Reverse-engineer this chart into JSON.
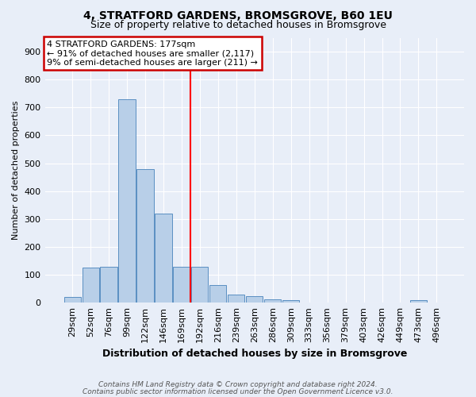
{
  "title": "4, STRATFORD GARDENS, BROMSGROVE, B60 1EU",
  "subtitle": "Size of property relative to detached houses in Bromsgrove",
  "xlabel": "Distribution of detached houses by size in Bromsgrove",
  "ylabel": "Number of detached properties",
  "footnote1": "Contains HM Land Registry data © Crown copyright and database right 2024.",
  "footnote2": "Contains public sector information licensed under the Open Government Licence v3.0.",
  "bar_labels": [
    "29sqm",
    "52sqm",
    "76sqm",
    "99sqm",
    "122sqm",
    "146sqm",
    "169sqm",
    "192sqm",
    "216sqm",
    "239sqm",
    "263sqm",
    "286sqm",
    "309sqm",
    "333sqm",
    "356sqm",
    "379sqm",
    "403sqm",
    "426sqm",
    "449sqm",
    "473sqm",
    "496sqm"
  ],
  "bar_values": [
    20,
    125,
    130,
    730,
    480,
    320,
    130,
    130,
    63,
    28,
    22,
    12,
    8,
    0,
    0,
    0,
    0,
    0,
    0,
    8,
    0
  ],
  "bar_color": "#b8cfe8",
  "bar_edge_color": "#5a8fc2",
  "background_color": "#e8eef8",
  "grid_color": "#ffffff",
  "red_line_index": 7,
  "annotation_text": "4 STRATFORD GARDENS: 177sqm\n← 91% of detached houses are smaller (2,117)\n9% of semi-detached houses are larger (211) →",
  "annotation_box_facecolor": "#ffffff",
  "annotation_box_edgecolor": "#cc0000",
  "ylim": [
    0,
    950
  ],
  "yticks": [
    0,
    100,
    200,
    300,
    400,
    500,
    600,
    700,
    800,
    900
  ],
  "title_fontsize": 10,
  "subtitle_fontsize": 9,
  "xlabel_fontsize": 9,
  "ylabel_fontsize": 8,
  "tick_fontsize": 8,
  "annot_fontsize": 8
}
